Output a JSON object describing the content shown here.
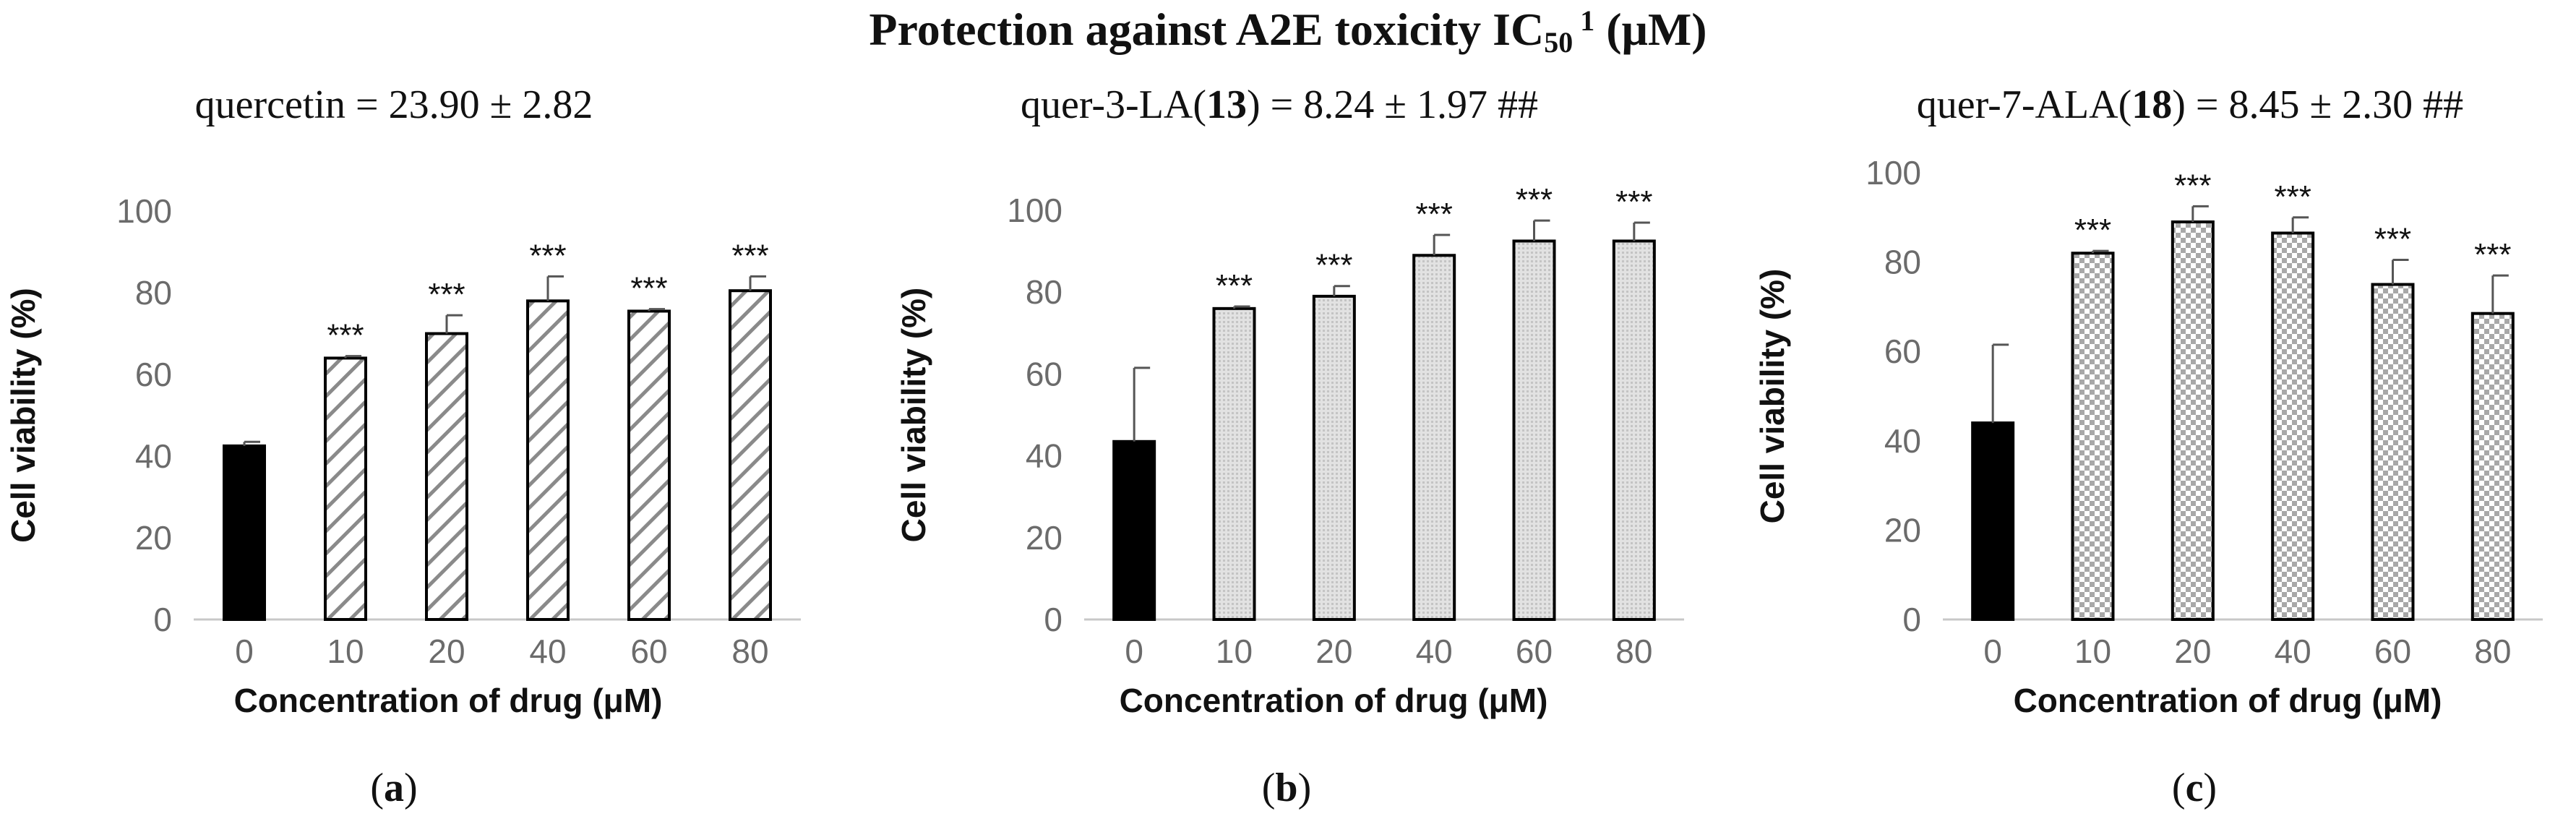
{
  "figure_title": {
    "main": "Protection against A2E toxicity IC",
    "subscript": "50",
    "superscript": "1",
    "unit": " (μM)"
  },
  "chart_data": [
    {
      "type": "bar",
      "panel_label": {
        "open": "(",
        "letter": "a",
        "close": ")"
      },
      "subtitle": {
        "prefix": "quercetin = 23.90 ± 2.82",
        "bold": "",
        "suffix": ""
      },
      "xlabel": "Concentration of drug (μM)",
      "ylabel": "Cell viability  (%)",
      "ylim": [
        0,
        100
      ],
      "yticks": [
        "0",
        "20",
        "40",
        "60",
        "80",
        "100"
      ],
      "categories": [
        "0",
        "10",
        "20",
        "40",
        "60",
        "80"
      ],
      "values": [
        42.5,
        64,
        70,
        78,
        75.5,
        80.5
      ],
      "errors": [
        1,
        0.5,
        4.5,
        6,
        0.5,
        3.5
      ],
      "significance": [
        "",
        "***",
        "***",
        "***",
        "***",
        "***"
      ],
      "fills": [
        "solid",
        "diagonal",
        "diagonal",
        "diagonal",
        "diagonal",
        "diagonal"
      ]
    },
    {
      "type": "bar",
      "panel_label": {
        "open": "(",
        "letter": "b",
        "close": ")"
      },
      "subtitle": {
        "prefix": "quer-3-LA(",
        "bold": "13",
        "suffix": ") = 8.24 ± 1.97 ##"
      },
      "xlabel": "Concentration of drug (μM)",
      "ylabel": "Cell viability  (%)",
      "ylim": [
        0,
        100
      ],
      "yticks": [
        "0",
        "20",
        "40",
        "60",
        "80",
        "100"
      ],
      "categories": [
        "0",
        "10",
        "20",
        "40",
        "60",
        "80"
      ],
      "values": [
        43.5,
        76,
        79,
        89,
        92.5,
        92.5
      ],
      "errors": [
        18,
        0.5,
        2.5,
        5,
        5,
        4.5
      ],
      "significance": [
        "",
        "***",
        "***",
        "***",
        "***",
        "***"
      ],
      "fills": [
        "solid",
        "dots",
        "dots",
        "dots",
        "dots",
        "dots"
      ]
    },
    {
      "type": "bar",
      "panel_label": {
        "open": "(",
        "letter": "c",
        "close": ")"
      },
      "subtitle": {
        "prefix": "quer-7-ALA(",
        "bold": "18",
        "suffix": ") = 8.45 ± 2.30 ##"
      },
      "xlabel": "Concentration of drug (μM)",
      "ylabel": "Cell viability  (%)",
      "ylim": [
        0,
        100
      ],
      "yticks": [
        "0",
        "20",
        "40",
        "60",
        "80",
        "100"
      ],
      "categories": [
        "0",
        "10",
        "20",
        "40",
        "60",
        "80"
      ],
      "values": [
        44,
        82,
        89,
        86.5,
        75,
        68.5
      ],
      "errors": [
        17.5,
        0.5,
        3.5,
        3.5,
        5.5,
        8.5
      ],
      "significance": [
        "",
        "***",
        "***",
        "***",
        "***",
        "***"
      ],
      "fills": [
        "solid",
        "checker",
        "checker",
        "checker",
        "checker",
        "checker"
      ]
    }
  ]
}
